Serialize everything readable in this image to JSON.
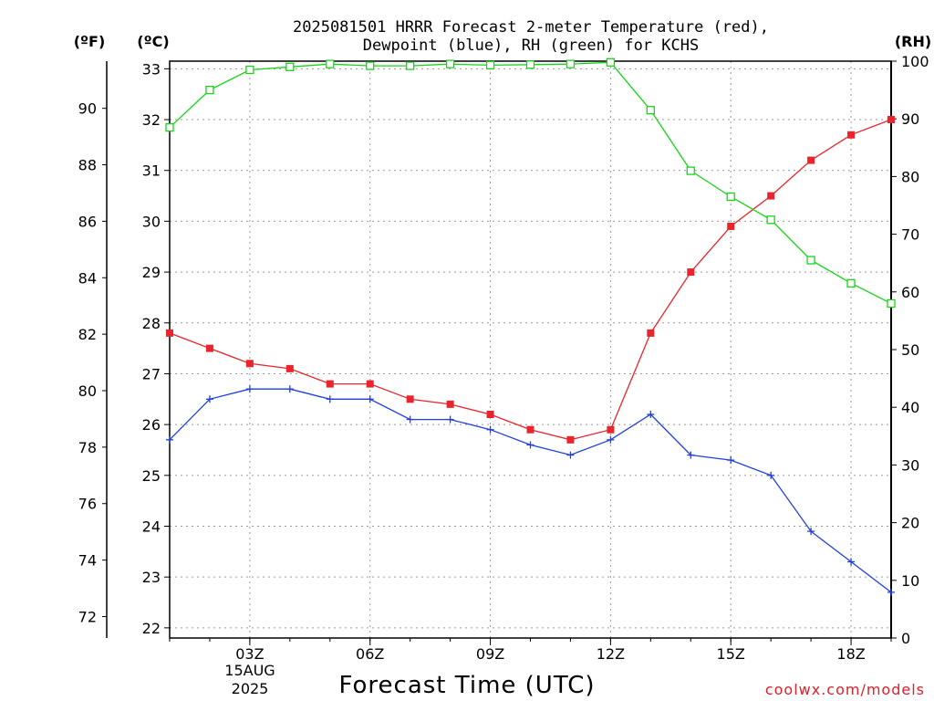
{
  "chart_data": {
    "type": "line",
    "title_line1": "2025081501 HRRR Forecast 2-meter Temperature (red),",
    "title_line2": "Dewpoint (blue), RH (green) for KCHS",
    "xlabel": "Forecast Time (UTC)",
    "watermark": "coolwx.com/models",
    "date_label_line1": "15AUG",
    "date_label_line2": "2025",
    "units": {
      "fahrenheit": "(ºF)",
      "celsius": "(ºC)",
      "rh": "(RH)"
    },
    "x_hours": [
      1,
      2,
      3,
      4,
      5,
      6,
      7,
      8,
      9,
      10,
      11,
      12,
      13,
      14,
      15,
      16,
      17,
      18,
      19
    ],
    "x_ticks": [
      {
        "hour": 3,
        "label": "03Z"
      },
      {
        "hour": 6,
        "label": "06Z"
      },
      {
        "hour": 9,
        "label": "09Z"
      },
      {
        "hour": 12,
        "label": "12Z"
      },
      {
        "hour": 15,
        "label": "15Z"
      },
      {
        "hour": 18,
        "label": "18Z"
      }
    ],
    "x_range": [
      1,
      19
    ],
    "celsius_range": [
      21.8,
      33.15
    ],
    "celsius_ticks": [
      "22",
      "23",
      "24",
      "25",
      "26",
      "27",
      "28",
      "29",
      "30",
      "31",
      "32",
      "33"
    ],
    "fahrenheit_ticks": [
      "72",
      "74",
      "76",
      "78",
      "80",
      "82",
      "84",
      "86",
      "88",
      "90"
    ],
    "rh_range": [
      0,
      100
    ],
    "rh_ticks": [
      "0",
      "10",
      "20",
      "30",
      "40",
      "50",
      "60",
      "70",
      "80",
      "90",
      "100"
    ],
    "grid": true,
    "series": [
      {
        "name": "Temperature",
        "axis": "celsius",
        "color": "#e8242c",
        "marker": "filled-square",
        "values": [
          27.8,
          27.5,
          27.2,
          27.1,
          26.8,
          26.8,
          26.5,
          26.4,
          26.2,
          25.9,
          25.7,
          25.9,
          27.8,
          29.0,
          29.9,
          30.5,
          31.2,
          31.7,
          32.0
        ]
      },
      {
        "name": "Dewpoint",
        "axis": "celsius",
        "color": "#1f3fe0",
        "marker": "plus",
        "values": [
          25.7,
          26.5,
          26.7,
          26.7,
          26.5,
          26.5,
          26.1,
          26.1,
          25.9,
          25.6,
          25.4,
          25.7,
          26.2,
          25.4,
          25.3,
          25.0,
          23.9,
          23.3,
          22.7
        ]
      },
      {
        "name": "RH",
        "axis": "rh",
        "color": "#16d616",
        "marker": "open-square",
        "values": [
          88.5,
          95.0,
          98.5,
          99.0,
          99.5,
          99.2,
          99.2,
          99.5,
          99.3,
          99.4,
          99.5,
          99.8,
          91.5,
          81.0,
          76.5,
          72.5,
          65.5,
          61.5,
          58.0
        ]
      }
    ]
  }
}
